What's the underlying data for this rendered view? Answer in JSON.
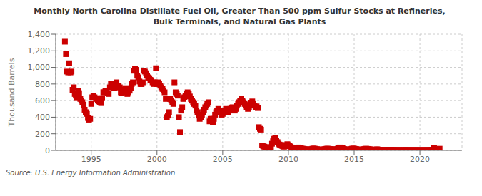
{
  "chart_data": {
    "type": "scatter",
    "title": "Monthly North Carolina Distillate Fuel Oil, Greater Than 500 ppm Sulfur Stocks at Refineries,\nBulk Terminals, and Natural Gas Plants",
    "ylabel": "Thousand Barrels",
    "source": "Source: U.S. Energy Information Administration",
    "color": "#cc0000",
    "marker": "square",
    "grid": true,
    "xlim": [
      1992.3,
      2023.2
    ],
    "ylim": [
      0,
      1400
    ],
    "xticks": [
      1995,
      2000,
      2005,
      2010,
      2015,
      2020
    ],
    "yticks": [
      0,
      200,
      400,
      600,
      800,
      {
        "value": 1000,
        "label": "1,000"
      },
      {
        "value": 1200,
        "label": "1,200"
      },
      {
        "value": 1400,
        "label": "1,400"
      }
    ],
    "x": [
      1993.0,
      1993.08,
      1993.17,
      1993.25,
      1993.33,
      1993.42,
      1993.5,
      1993.58,
      1993.67,
      1993.75,
      1993.83,
      1993.92,
      1994.0,
      1994.08,
      1994.17,
      1994.25,
      1994.33,
      1994.42,
      1994.5,
      1994.58,
      1994.67,
      1994.75,
      1994.83,
      1994.92,
      1995.0,
      1995.08,
      1995.17,
      1995.25,
      1995.33,
      1995.42,
      1995.5,
      1995.58,
      1995.67,
      1995.75,
      1995.83,
      1995.92,
      1996.0,
      1996.08,
      1996.17,
      1996.25,
      1996.33,
      1996.42,
      1996.5,
      1996.58,
      1996.67,
      1996.75,
      1996.83,
      1996.92,
      1997.0,
      1997.08,
      1997.17,
      1997.25,
      1997.33,
      1997.42,
      1997.5,
      1997.58,
      1997.67,
      1997.75,
      1997.83,
      1997.92,
      1998.0,
      1998.08,
      1998.17,
      1998.25,
      1998.33,
      1998.42,
      1998.5,
      1998.58,
      1998.67,
      1998.75,
      1998.83,
      1998.92,
      1999.0,
      1999.08,
      1999.17,
      1999.25,
      1999.33,
      1999.42,
      1999.5,
      1999.58,
      1999.67,
      1999.75,
      1999.83,
      1999.92,
      2000.0,
      2000.08,
      2000.17,
      2000.25,
      2000.33,
      2000.42,
      2000.5,
      2000.58,
      2000.67,
      2000.75,
      2000.83,
      2000.92,
      2001.0,
      2001.08,
      2001.17,
      2001.25,
      2001.33,
      2001.42,
      2001.5,
      2001.58,
      2001.67,
      2001.75,
      2001.83,
      2001.92,
      2002.0,
      2002.08,
      2002.17,
      2002.25,
      2002.33,
      2002.42,
      2002.5,
      2002.58,
      2002.67,
      2002.75,
      2002.83,
      2002.92,
      2003.0,
      2003.08,
      2003.17,
      2003.25,
      2003.33,
      2003.42,
      2003.5,
      2003.58,
      2003.67,
      2003.75,
      2003.83,
      2003.92,
      2004.0,
      2004.08,
      2004.17,
      2004.25,
      2004.33,
      2004.42,
      2004.5,
      2004.58,
      2004.67,
      2004.75,
      2004.83,
      2004.92,
      2005.0,
      2005.08,
      2005.17,
      2005.25,
      2005.33,
      2005.42,
      2005.5,
      2005.58,
      2005.67,
      2005.75,
      2005.83,
      2005.92,
      2006.0,
      2006.08,
      2006.17,
      2006.25,
      2006.33,
      2006.42,
      2006.5,
      2006.58,
      2006.67,
      2006.75,
      2006.83,
      2006.92,
      2007.0,
      2007.08,
      2007.17,
      2007.25,
      2007.33,
      2007.42,
      2007.5,
      2007.58,
      2007.67,
      2007.75,
      2007.83,
      2007.92,
      2008.0,
      2008.08,
      2008.17,
      2008.25,
      2008.33,
      2008.42,
      2008.5,
      2008.58,
      2008.67,
      2008.75,
      2008.83,
      2008.92,
      2009.0,
      2009.08,
      2009.17,
      2009.25,
      2009.33,
      2009.42,
      2009.5,
      2009.58,
      2009.67,
      2009.75,
      2009.83,
      2009.92,
      2010.0,
      2010.08,
      2010.17,
      2010.25,
      2010.33,
      2010.42,
      2010.5,
      2010.58,
      2010.67,
      2010.75,
      2010.83,
      2010.92,
      2011.0,
      2011.08,
      2011.17,
      2011.25,
      2011.33,
      2011.42,
      2011.5,
      2011.58,
      2011.67,
      2011.75,
      2011.83,
      2011.92,
      2012.0,
      2012.08,
      2012.17,
      2012.25,
      2012.33,
      2012.42,
      2012.5,
      2012.58,
      2012.67,
      2012.75,
      2012.83,
      2012.92,
      2013.0,
      2013.08,
      2013.17,
      2013.25,
      2013.33,
      2013.42,
      2013.5,
      2013.58,
      2013.67,
      2013.75,
      2013.83,
      2013.92,
      2014.0,
      2014.08,
      2014.17,
      2014.25,
      2014.33,
      2014.42,
      2014.5,
      2014.58,
      2014.67,
      2014.75,
      2014.83,
      2014.92,
      2015.0,
      2015.08,
      2015.17,
      2015.25,
      2015.33,
      2015.42,
      2015.5,
      2015.58,
      2015.67,
      2015.75,
      2015.83,
      2015.92,
      2016.0,
      2016.08,
      2016.17,
      2016.25,
      2016.33,
      2016.42,
      2016.5,
      2016.58,
      2016.67,
      2016.75,
      2016.83,
      2016.92,
      2017.0,
      2017.08,
      2017.17,
      2017.25,
      2017.33,
      2017.42,
      2017.5,
      2017.58,
      2017.67,
      2017.75,
      2017.83,
      2017.92,
      2018.0,
      2018.08,
      2018.17,
      2018.25,
      2018.33,
      2018.42,
      2018.5,
      2018.58,
      2018.67,
      2018.75,
      2018.83,
      2018.92,
      2019.0,
      2019.08,
      2019.17,
      2019.25,
      2019.33,
      2019.42,
      2019.5,
      2019.58,
      2019.67,
      2019.75,
      2019.83,
      2019.92,
      2020.0,
      2020.08,
      2020.17,
      2020.25,
      2020.33,
      2020.42,
      2020.5,
      2020.58,
      2020.67,
      2020.75,
      2020.83,
      2020.92,
      2021.0,
      2021.08,
      2021.17,
      2021.25,
      2021.33,
      2021.42,
      2021.5
    ],
    "values": [
      1310,
      1160,
      950,
      940,
      1050,
      940,
      950,
      730,
      760,
      680,
      660,
      630,
      720,
      690,
      620,
      600,
      580,
      550,
      490,
      460,
      440,
      390,
      370,
      380,
      560,
      640,
      660,
      640,
      630,
      620,
      600,
      590,
      580,
      570,
      630,
      700,
      700,
      720,
      710,
      690,
      680,
      760,
      800,
      780,
      770,
      750,
      800,
      820,
      760,
      780,
      760,
      700,
      690,
      710,
      730,
      750,
      700,
      680,
      700,
      720,
      750,
      800,
      820,
      960,
      980,
      970,
      900,
      880,
      830,
      800,
      800,
      820,
      960,
      950,
      930,
      900,
      880,
      870,
      850,
      840,
      820,
      800,
      820,
      990,
      800,
      820,
      800,
      780,
      760,
      740,
      720,
      700,
      620,
      400,
      420,
      460,
      620,
      600,
      580,
      560,
      820,
      700,
      680,
      660,
      400,
      220,
      480,
      520,
      620,
      640,
      660,
      680,
      700,
      680,
      650,
      620,
      600,
      580,
      560,
      540,
      480,
      460,
      420,
      380,
      400,
      430,
      460,
      490,
      520,
      540,
      560,
      580,
      350,
      380,
      380,
      340,
      380,
      430,
      460,
      480,
      500,
      480,
      460,
      430,
      440,
      460,
      480,
      500,
      480,
      460,
      480,
      500,
      510,
      520,
      500,
      480,
      500,
      540,
      560,
      580,
      600,
      620,
      600,
      580,
      560,
      540,
      520,
      500,
      520,
      550,
      570,
      590,
      560,
      540,
      520,
      530,
      510,
      280,
      260,
      250,
      60,
      50,
      45,
      40,
      35,
      30,
      25,
      30,
      40,
      80,
      110,
      140,
      150,
      120,
      100,
      80,
      70,
      65,
      55,
      50,
      45,
      50,
      65,
      75,
      65,
      55,
      45,
      35,
      30,
      25,
      20,
      25,
      30,
      35,
      30,
      25,
      22,
      20,
      18,
      15,
      12,
      10,
      8,
      10,
      12,
      15,
      20,
      22,
      20,
      18,
      15,
      12,
      10,
      8,
      8,
      10,
      12,
      15,
      18,
      20,
      20,
      18,
      16,
      14,
      12,
      10,
      10,
      12,
      14,
      20,
      28,
      35,
      32,
      28,
      22,
      16,
      12,
      8,
      8,
      10,
      12,
      15,
      20,
      22,
      20,
      18,
      15,
      12,
      10,
      8,
      8,
      10,
      12,
      15,
      18,
      20,
      18,
      16,
      14,
      12,
      10,
      8,
      7,
      9,
      11,
      13,
      10,
      8,
      7,
      6,
      5,
      4,
      5,
      6,
      6,
      7,
      7,
      7,
      6,
      5,
      6,
      5,
      4,
      3,
      4,
      5,
      4,
      4,
      3,
      4,
      5,
      6,
      5,
      4,
      3,
      4,
      5,
      4,
      3,
      4,
      4,
      5,
      4,
      3,
      4,
      3,
      3,
      4,
      5,
      4,
      3,
      4,
      4,
      5,
      6,
      6,
      5,
      28,
      4,
      3,
      4,
      4,
      20
    ]
  }
}
